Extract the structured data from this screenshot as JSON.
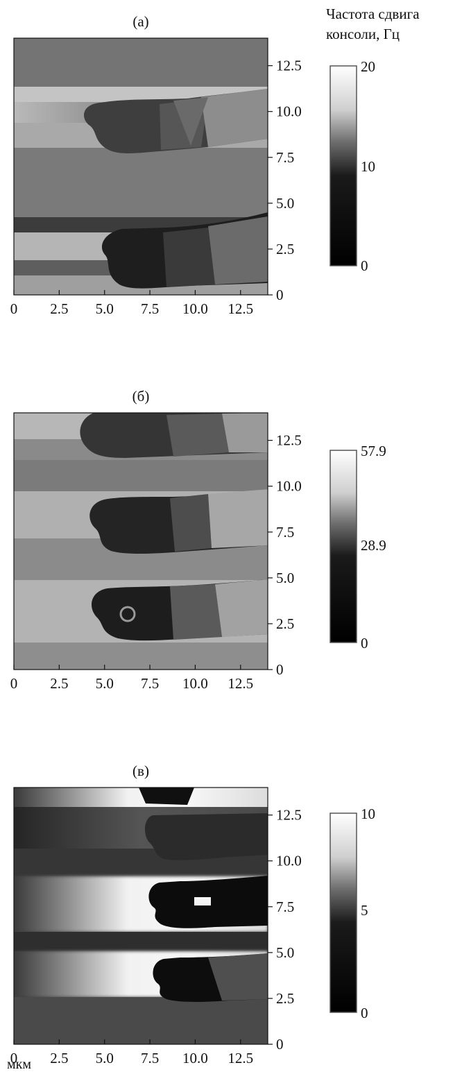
{
  "figure": {
    "colorbar_title_line1": "Частота сдвига",
    "colorbar_title_line2": "консоли, Гц",
    "x_unit_label": "мкм"
  },
  "chart_data": [
    {
      "type": "heatmap",
      "panel_label": "(a)",
      "x_ticks": [
        "0",
        "2.5",
        "5.0",
        "7.5",
        "10.0",
        "12.5"
      ],
      "y_ticks": [
        "0",
        "2.5",
        "5.0",
        "7.5",
        "10.0",
        "12.5"
      ],
      "xlim": [
        0,
        14
      ],
      "ylim": [
        0,
        14
      ],
      "colorbar": {
        "min": 0,
        "mid": 10,
        "max": 20,
        "labels": [
          "0",
          "10",
          "20"
        ]
      }
    },
    {
      "type": "heatmap",
      "panel_label": "(б)",
      "x_ticks": [
        "0",
        "2.5",
        "5.0",
        "7.5",
        "10.0",
        "12.5"
      ],
      "y_ticks": [
        "0",
        "2.5",
        "5.0",
        "7.5",
        "10.0",
        "12.5"
      ],
      "xlim": [
        0,
        14
      ],
      "ylim": [
        0,
        14
      ],
      "colorbar": {
        "min": 0,
        "mid": 28.9,
        "max": 57.9,
        "labels": [
          "0",
          "28.9",
          "57.9"
        ]
      }
    },
    {
      "type": "heatmap",
      "panel_label": "(в)",
      "x_ticks": [
        "0",
        "2.5",
        "5.0",
        "7.5",
        "10.0",
        "12.5"
      ],
      "y_ticks": [
        "0",
        "2.5",
        "5.0",
        "7.5",
        "10.0",
        "12.5"
      ],
      "xlim": [
        0,
        14
      ],
      "ylim": [
        0,
        14
      ],
      "colorbar": {
        "min": 0,
        "mid": 5,
        "max": 10,
        "labels": [
          "0",
          "5",
          "10"
        ]
      }
    }
  ]
}
